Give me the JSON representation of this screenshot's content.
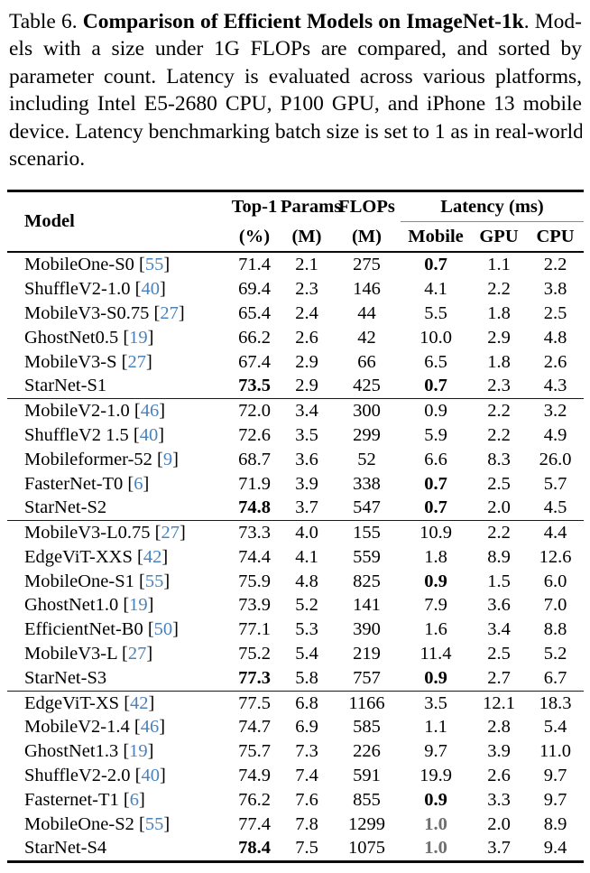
{
  "caption": {
    "lines": [
      {
        "parts": [
          {
            "text": "Table 6. ",
            "bold": false
          },
          {
            "text": "Comparison of Efficient Models on ImageNet-1k",
            "bold": true
          },
          {
            "text": ". Mod-",
            "bold": false
          }
        ]
      },
      {
        "parts": [
          {
            "text": "els with a size under 1G FLOPs are compared, and sorted by",
            "bold": false
          }
        ]
      },
      {
        "parts": [
          {
            "text": "parameter count. Latency is evaluated across various platforms,",
            "bold": false
          }
        ]
      },
      {
        "parts": [
          {
            "text": "including Intel E5-2680 CPU, P100 GPU, and iPhone 13 mobile",
            "bold": false
          }
        ]
      },
      {
        "parts": [
          {
            "text": "device. Latency benchmarking batch size is set to 1 as in real-world",
            "bold": false
          }
        ]
      },
      {
        "parts": [
          {
            "text": "scenario.",
            "bold": false
          }
        ]
      }
    ]
  },
  "table": {
    "header": {
      "model": "Model",
      "top1_line1": "Top-1",
      "top1_line2": "(%)",
      "params_line1": "Params",
      "params_line2": "(M)",
      "flops_line1": "FLOPs",
      "flops_line2": "(M)",
      "latency_group": "Latency (ms)",
      "latency_cols": [
        "Mobile",
        "GPU",
        "CPU"
      ]
    },
    "groups": [
      {
        "rows": [
          {
            "model": "MobileOne-S0",
            "cite": "55",
            "top1": "71.4",
            "params": "2.1",
            "flops": "275",
            "mobile": "0.7",
            "mobile_style": "bold",
            "gpu": "1.1",
            "cpu": "2.2"
          },
          {
            "model": "ShuffleV2-1.0",
            "cite": "40",
            "top1": "69.4",
            "params": "2.3",
            "flops": "146",
            "mobile": "4.1",
            "gpu": "2.2",
            "cpu": "3.8"
          },
          {
            "model": "MobileV3-S0.75",
            "cite": "27",
            "top1": "65.4",
            "params": "2.4",
            "flops": "44",
            "mobile": "5.5",
            "gpu": "1.8",
            "cpu": "2.5"
          },
          {
            "model": "GhostNet0.5",
            "cite": "19",
            "top1": "66.2",
            "params": "2.6",
            "flops": "42",
            "mobile": "10.0",
            "gpu": "2.9",
            "cpu": "4.8"
          },
          {
            "model": "MobileV3-S",
            "cite": "27",
            "top1": "67.4",
            "params": "2.9",
            "flops": "66",
            "mobile": "6.5",
            "gpu": "1.8",
            "cpu": "2.6"
          },
          {
            "model": "StarNet-S1",
            "top1": "73.5",
            "top1_bold": true,
            "params": "2.9",
            "flops": "425",
            "mobile": "0.7",
            "mobile_style": "bold",
            "gpu": "2.3",
            "cpu": "4.3"
          }
        ]
      },
      {
        "rows": [
          {
            "model": "MobileV2-1.0",
            "cite": "46",
            "top1": "72.0",
            "params": "3.4",
            "flops": "300",
            "mobile": "0.9",
            "gpu": "2.2",
            "cpu": "3.2"
          },
          {
            "model": "ShuffleV2 1.5",
            "cite": "40",
            "top1": "72.6",
            "params": "3.5",
            "flops": "299",
            "mobile": "5.9",
            "gpu": "2.2",
            "cpu": "4.9"
          },
          {
            "model": "Mobileformer-52",
            "cite": "9",
            "top1": "68.7",
            "params": "3.6",
            "flops": "52",
            "mobile": "6.6",
            "gpu": "8.3",
            "cpu": "26.0"
          },
          {
            "model": "FasterNet-T0",
            "cite": "6",
            "top1": "71.9",
            "params": "3.9",
            "flops": "338",
            "mobile": "0.7",
            "mobile_style": "bold",
            "gpu": "2.5",
            "cpu": "5.7"
          },
          {
            "model": "StarNet-S2",
            "top1": "74.8",
            "top1_bold": true,
            "params": "3.7",
            "flops": "547",
            "mobile": "0.7",
            "mobile_style": "bold",
            "gpu": "2.0",
            "cpu": "4.5"
          }
        ]
      },
      {
        "rows": [
          {
            "model": "MobileV3-L0.75",
            "cite": "27",
            "top1": "73.3",
            "params": "4.0",
            "flops": "155",
            "mobile": "10.9",
            "gpu": "2.2",
            "cpu": "4.4"
          },
          {
            "model": "EdgeViT-XXS",
            "cite": "42",
            "top1": "74.4",
            "params": "4.1",
            "flops": "559",
            "mobile": "1.8",
            "gpu": "8.9",
            "cpu": "12.6"
          },
          {
            "model": "MobileOne-S1",
            "cite": "55",
            "top1": "75.9",
            "params": "4.8",
            "flops": "825",
            "mobile": "0.9",
            "mobile_style": "bold",
            "gpu": "1.5",
            "cpu": "6.0"
          },
          {
            "model": "GhostNet1.0",
            "cite": "19",
            "top1": "73.9",
            "params": "5.2",
            "flops": "141",
            "mobile": "7.9",
            "gpu": "3.6",
            "cpu": "7.0"
          },
          {
            "model": "EfficientNet-B0",
            "cite": "50",
            "top1": "77.1",
            "params": "5.3",
            "flops": "390",
            "mobile": "1.6",
            "gpu": "3.4",
            "cpu": "8.8"
          },
          {
            "model": "MobileV3-L",
            "cite": "27",
            "top1": "75.2",
            "params": "5.4",
            "flops": "219",
            "mobile": "11.4",
            "gpu": "2.5",
            "cpu": "5.2"
          },
          {
            "model": "StarNet-S3",
            "top1": "77.3",
            "top1_bold": true,
            "params": "5.8",
            "flops": "757",
            "mobile": "0.9",
            "mobile_style": "bold",
            "gpu": "2.7",
            "cpu": "6.7"
          }
        ]
      },
      {
        "rows": [
          {
            "model": "EdgeViT-XS",
            "cite": "42",
            "top1": "77.5",
            "params": "6.8",
            "flops": "1166",
            "mobile": "3.5",
            "gpu": "12.1",
            "cpu": "18.3"
          },
          {
            "model": "MobileV2-1.4",
            "cite": "46",
            "top1": "74.7",
            "params": "6.9",
            "flops": "585",
            "mobile": "1.1",
            "gpu": "2.8",
            "cpu": "5.4"
          },
          {
            "model": "GhostNet1.3",
            "cite": "19",
            "top1": "75.7",
            "params": "7.3",
            "flops": "226",
            "mobile": "9.7",
            "gpu": "3.9",
            "cpu": "11.0"
          },
          {
            "model": "ShuffleV2-2.0",
            "cite": "40",
            "top1": "74.9",
            "params": "7.4",
            "flops": "591",
            "mobile": "19.9",
            "gpu": "2.6",
            "cpu": "9.7"
          },
          {
            "model": "Fasternet-T1",
            "cite": "6",
            "top1": "76.2",
            "params": "7.6",
            "flops": "855",
            "mobile": "0.9",
            "mobile_style": "bold",
            "gpu": "3.3",
            "cpu": "9.7"
          },
          {
            "model": "MobileOne-S2",
            "cite": "55",
            "top1": "77.4",
            "params": "7.8",
            "flops": "1299",
            "mobile": "1.0",
            "mobile_style": "gray",
            "gpu": "2.0",
            "cpu": "8.9"
          },
          {
            "model": "StarNet-S4",
            "top1": "78.4",
            "top1_bold": true,
            "params": "7.5",
            "flops": "1075",
            "mobile": "1.0",
            "mobile_style": "gray",
            "gpu": "3.7",
            "cpu": "9.4"
          }
        ]
      }
    ]
  },
  "colors": {
    "citation_link": "#4a82bc",
    "muted_gray": "#6f6f6f",
    "rule_black": "#0a0a0a",
    "sub_rule_gray": "#8a8a8a"
  }
}
